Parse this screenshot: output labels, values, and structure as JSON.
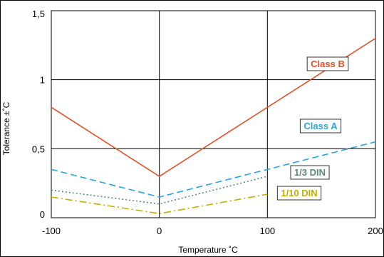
{
  "chart_data": {
    "type": "line",
    "xlabel": "Temperature ˚C",
    "ylabel": "Tolerance ±˚C",
    "xlim": [
      -100,
      200
    ],
    "ylim": [
      0,
      1.5
    ],
    "x_ticks": [
      "-100",
      "0",
      "100",
      "200"
    ],
    "y_ticks": [
      "0",
      "0,5",
      "1",
      "1,5"
    ],
    "grid": true,
    "series": [
      {
        "name": "Class B",
        "color": "#e0502a",
        "dash": "solid",
        "x": [
          -100,
          0,
          200
        ],
        "y": [
          0.8,
          0.3,
          1.3
        ]
      },
      {
        "name": "Class A",
        "color": "#2aa6dc",
        "dash": "dashed",
        "x": [
          -100,
          0,
          200
        ],
        "y": [
          0.35,
          0.15,
          0.55
        ]
      },
      {
        "name": "1/3 DIN",
        "color": "#5a8a7a",
        "dash": "dotted",
        "x": [
          -100,
          0,
          100
        ],
        "y": [
          0.2,
          0.1,
          0.3
        ]
      },
      {
        "name": "1/10 DIN",
        "color": "#c2b000",
        "dash": "dashdot",
        "x": [
          -100,
          0,
          100
        ],
        "y": [
          0.15,
          0.03,
          0.17
        ]
      }
    ]
  }
}
